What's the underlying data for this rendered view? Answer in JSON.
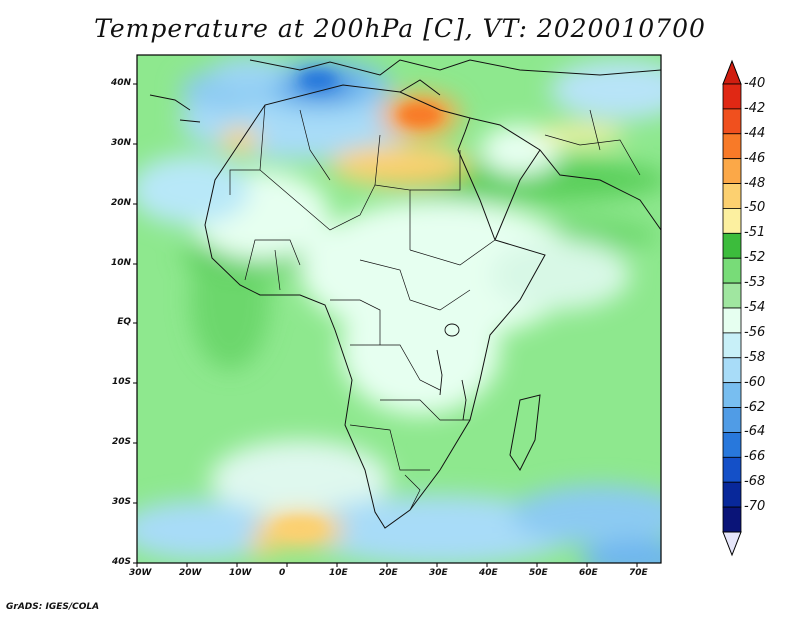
{
  "title": "Temperature at 200hPa [C], VT: 2020010700",
  "credit": "GrADS: IGES/COLA",
  "map": {
    "lat_ticks": [
      "40N",
      "30N",
      "20N",
      "10N",
      "EQ",
      "10S",
      "20S",
      "30S",
      "40S"
    ],
    "lon_ticks": [
      "30W",
      "20W",
      "10W",
      "0",
      "10E",
      "20E",
      "30E",
      "40E",
      "50E",
      "60E",
      "70E"
    ],
    "lat_range": [
      -40,
      45
    ],
    "lon_range": [
      -30,
      75
    ],
    "background_color": "#8ee88e"
  },
  "colorbar": {
    "levels": [
      "-40",
      "-42",
      "-44",
      "-46",
      "-48",
      "-50",
      "-51",
      "-52",
      "-53",
      "-54",
      "-56",
      "-58",
      "-60",
      "-62",
      "-64",
      "-66",
      "-68",
      "-70"
    ],
    "colors": [
      "#e02814",
      "#f0501e",
      "#f87a28",
      "#fba848",
      "#fcd070",
      "#fcf0a0",
      "#3cbc3c",
      "#78dc78",
      "#a0e6a0",
      "#e6fff0",
      "#c8f0f8",
      "#a8dcf8",
      "#78bef0",
      "#509ce6",
      "#2878dc",
      "#1450c8",
      "#08289a",
      "#0a1478"
    ],
    "over_color": "#d01e10",
    "under_color": "#e6e6fa"
  }
}
